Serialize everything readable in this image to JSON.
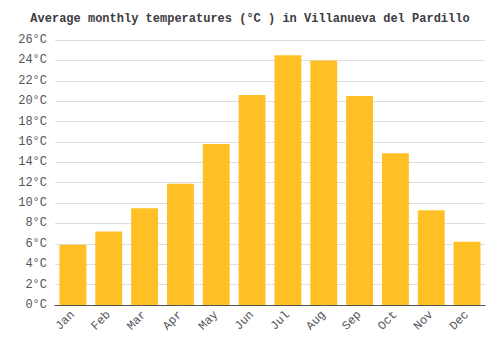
{
  "chart_data": {
    "type": "bar",
    "title": "Average monthly temperatures (°C ) in Villanueva del Pardillo",
    "categories": [
      "Jan",
      "Feb",
      "Mar",
      "Apr",
      "May",
      "Jun",
      "Jul",
      "Aug",
      "Sep",
      "Oct",
      "Nov",
      "Dec"
    ],
    "values": [
      5.9,
      7.2,
      9.5,
      11.9,
      15.8,
      20.6,
      24.5,
      24.0,
      20.5,
      14.9,
      9.3,
      6.2
    ],
    "color": "#FFC025",
    "ylim": [
      0,
      26
    ],
    "yticks": [
      {
        "value": 0,
        "label": "0°C"
      },
      {
        "value": 2,
        "label": "2°C"
      },
      {
        "value": 4,
        "label": "4°C"
      },
      {
        "value": 6,
        "label": "6°C"
      },
      {
        "value": 8,
        "label": "8°C"
      },
      {
        "value": 10,
        "label": "10°C"
      },
      {
        "value": 12,
        "label": "12°C"
      },
      {
        "value": 14,
        "label": "14°C"
      },
      {
        "value": 16,
        "label": "16°C"
      },
      {
        "value": 18,
        "label": "18°C"
      },
      {
        "value": 20,
        "label": "20°C"
      },
      {
        "value": 22,
        "label": "22°C"
      },
      {
        "value": 24,
        "label": "24°C"
      },
      {
        "value": 26,
        "label": "26°C"
      }
    ],
    "grid": true
  }
}
